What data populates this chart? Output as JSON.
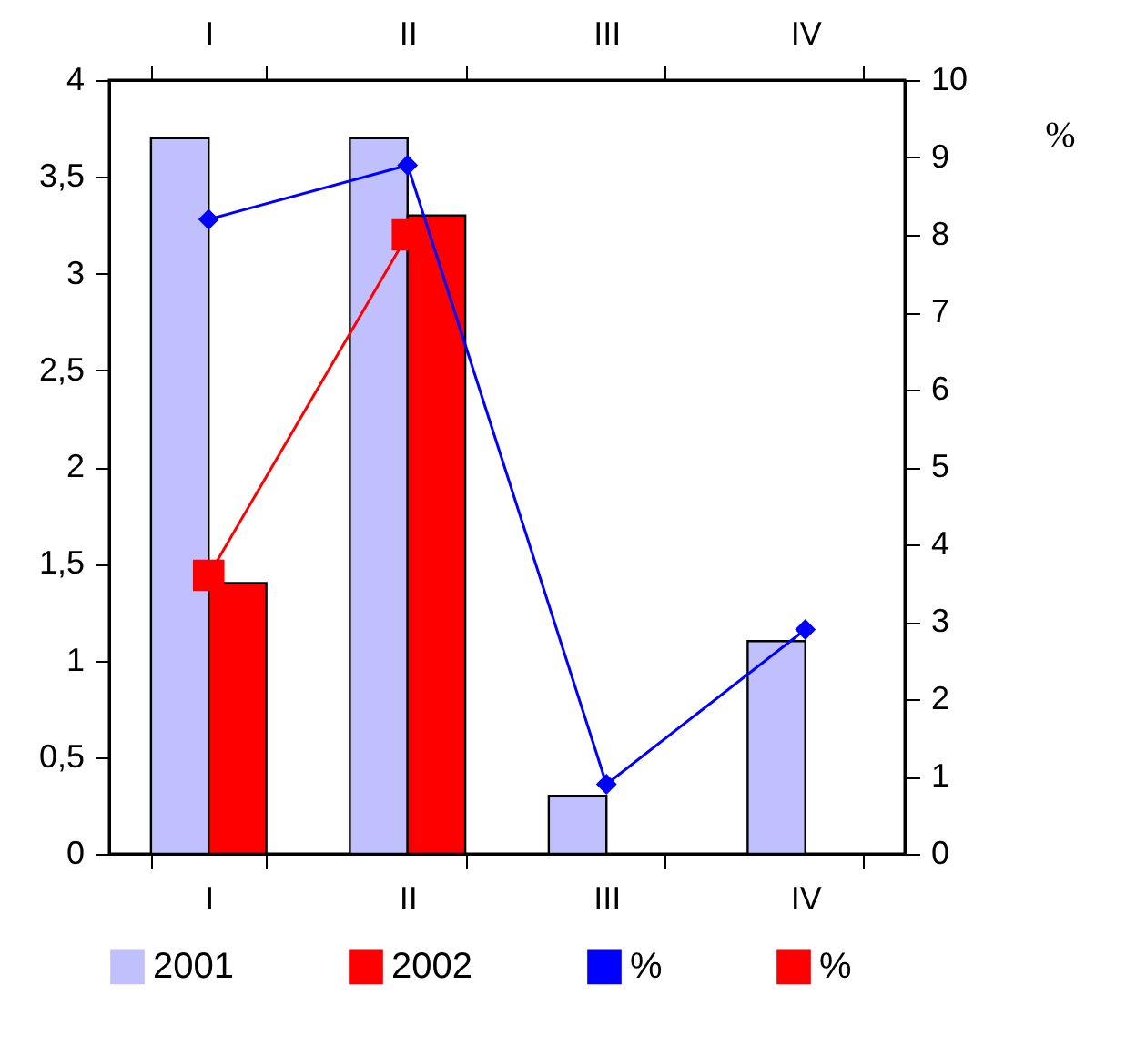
{
  "chart_data": {
    "type": "bar",
    "categories": [
      "I",
      "II",
      "III",
      "IV"
    ],
    "series": [
      {
        "name": "2001",
        "color": "#c0c0ff",
        "values": [
          3.7,
          3.7,
          0.3,
          1.1
        ]
      },
      {
        "name": "2002",
        "color": "#ff0000",
        "values": [
          1.4,
          3.3,
          null,
          null
        ]
      },
      {
        "name": "%",
        "type": "line",
        "axis": "y2",
        "marker": "diamond",
        "color": "#0000ff",
        "values": [
          8.2,
          8.9,
          0.9,
          2.9
        ]
      },
      {
        "name": "%",
        "type": "line",
        "axis": "y2",
        "marker": "square",
        "color": "#ff0000",
        "values": [
          3.6,
          8.0,
          null,
          null
        ]
      }
    ],
    "ylim": [
      0,
      4
    ],
    "yticks": [
      0,
      {
        "value": 0.5,
        "label": "0,5"
      },
      1,
      {
        "value": 1.5,
        "label": "1,5"
      },
      2,
      {
        "value": 2.5,
        "label": "2,5"
      },
      3,
      {
        "value": 3.5,
        "label": "3,5"
      },
      4
    ],
    "y2lim": [
      0,
      10
    ],
    "y2ticks": [
      0,
      1,
      2,
      3,
      4,
      5,
      6,
      7,
      8,
      9,
      10
    ],
    "y2label": "%",
    "legend": "bottom"
  }
}
